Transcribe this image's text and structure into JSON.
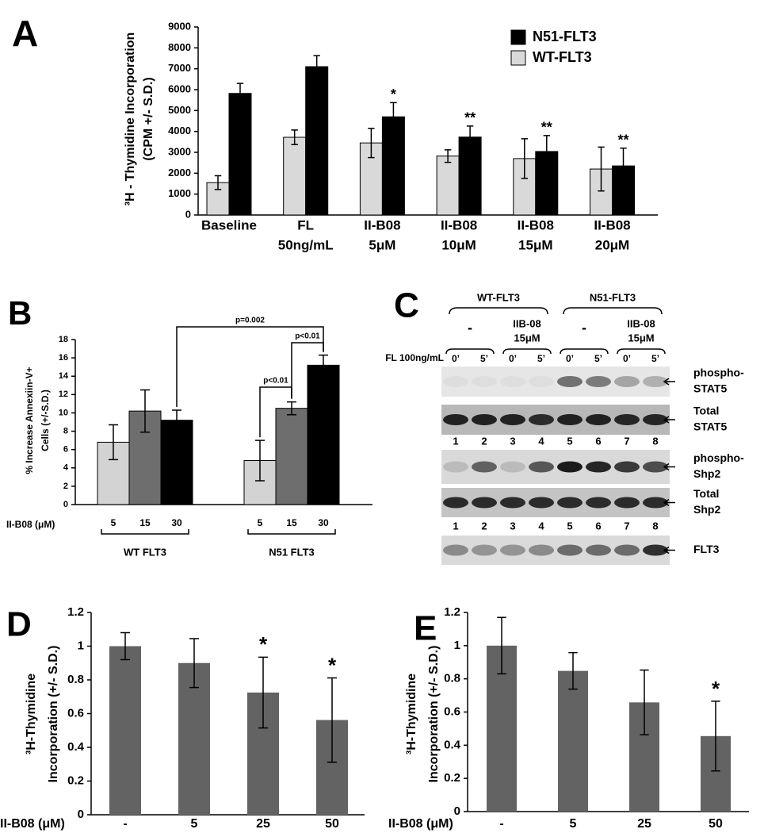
{
  "chart_data": [
    {
      "type": "bar",
      "panel": "A",
      "ylabel": [
        "³H - Thymidine Incorporation",
        "(CPM +/- S.D.)"
      ],
      "categories": [
        [
          "Baseline"
        ],
        [
          "FL",
          "50ng/mL"
        ],
        [
          "II-B08",
          "5μM"
        ],
        [
          "II-B08",
          "10μM"
        ],
        [
          "II-B08",
          "15μM"
        ],
        [
          "II-B08",
          "20μM"
        ]
      ],
      "series": [
        {
          "name": "WT-FLT3",
          "color": "#d9d9d9",
          "values": [
            1550,
            3720,
            3450,
            2820,
            2700,
            2200
          ],
          "errors": [
            330,
            350,
            700,
            300,
            950,
            1050
          ],
          "significance": [
            null,
            null,
            null,
            null,
            null,
            null
          ]
        },
        {
          "name": "N51-FLT3",
          "color": "#000000",
          "values": [
            5820,
            7100,
            4700,
            3730,
            3040,
            2350
          ],
          "errors": [
            480,
            530,
            680,
            530,
            760,
            850
          ],
          "significance": [
            null,
            null,
            "*",
            "**",
            "**",
            "**"
          ]
        }
      ],
      "ylim": [
        0,
        9000
      ],
      "yticks": [
        0,
        1000,
        2000,
        3000,
        4000,
        5000,
        6000,
        7000,
        8000,
        9000
      ],
      "legend": "upper right"
    },
    {
      "type": "bar",
      "panel": "B",
      "ylabel": [
        "% Increase Annexiin-V+",
        "Cells (+/-S.D.)"
      ],
      "xlabel": "II-B08 (μM)",
      "categories": [
        "WT FLT3",
        "N51 FLT3"
      ],
      "series": [
        {
          "name": "5",
          "color": "#d3d3d3",
          "values": [
            6.8,
            4.8
          ],
          "errors": [
            1.9,
            2.2
          ]
        },
        {
          "name": "15",
          "color": "#6e6e6e",
          "values": [
            10.2,
            10.5
          ],
          "errors": [
            2.3,
            0.7
          ]
        },
        {
          "name": "30",
          "color": "#000000",
          "values": [
            9.2,
            15.2
          ],
          "errors": [
            1.1,
            1.1
          ]
        }
      ],
      "comparisons": [
        {
          "label": "p=0.002"
        },
        {
          "label": "p<0.01"
        },
        {
          "label": "p<0.01"
        }
      ],
      "ylim": [
        0,
        18
      ],
      "yticks": [
        0,
        2,
        4,
        6,
        8,
        10,
        12,
        14,
        16,
        18
      ]
    },
    {
      "type": "bar",
      "panel": "D",
      "ylabel": [
        "³H-Thymidine",
        "Incorporation (+/- S.D.)"
      ],
      "xlabel": "II-B08 (μM)",
      "categories": [
        "-",
        "5",
        "25",
        "50"
      ],
      "series": [
        {
          "color": "#636363",
          "values": [
            1.0,
            0.9,
            0.725,
            0.562
          ],
          "errors": [
            0.08,
            0.145,
            0.21,
            0.25
          ],
          "significance": [
            null,
            null,
            "*",
            "*"
          ]
        }
      ],
      "ylim": [
        0,
        1.2
      ],
      "yticks": [
        0,
        0.2,
        0.4,
        0.6,
        0.8,
        1,
        1.2
      ]
    },
    {
      "type": "bar",
      "panel": "E",
      "ylabel": [
        "³H-Thymidine",
        "Incorporation (+/- S.D.)"
      ],
      "xlabel": "II-B08 (μM)",
      "categories": [
        "-",
        "5",
        "25",
        "50"
      ],
      "series": [
        {
          "color": "#636363",
          "values": [
            1.0,
            0.848,
            0.658,
            0.455
          ],
          "errors": [
            0.17,
            0.11,
            0.195,
            0.21
          ],
          "significance": [
            null,
            null,
            null,
            "*"
          ]
        }
      ],
      "ylim": [
        0,
        1.2
      ],
      "yticks": [
        0,
        0.2,
        0.4,
        0.6,
        0.8,
        1,
        1.2
      ]
    }
  ],
  "blot": {
    "panel": "C",
    "groups": [
      {
        "name": "WT-FLT3",
        "conditions": [
          {
            "label": [
              "-"
            ]
          },
          {
            "label": [
              "IIB-08",
              "15μM"
            ]
          }
        ]
      },
      {
        "name": "N51-FLT3",
        "conditions": [
          {
            "label": [
              "-"
            ]
          },
          {
            "label": [
              "IIB-08",
              "15μM"
            ]
          }
        ]
      }
    ],
    "treatment": "FL 100ng/mL",
    "times": [
      "0’",
      "5’"
    ],
    "lanes": [
      "1",
      "2",
      "3",
      "4",
      "5",
      "6",
      "7",
      "8"
    ],
    "rows": [
      {
        "label": [
          "phospho-",
          "STAT5"
        ]
      },
      {
        "label": [
          "Total",
          "STAT5"
        ]
      },
      {
        "label": [
          "phospho-",
          "Shp2"
        ]
      },
      {
        "label": [
          "Total",
          "Shp2"
        ]
      },
      {
        "label": [
          "FLT3"
        ]
      }
    ]
  }
}
